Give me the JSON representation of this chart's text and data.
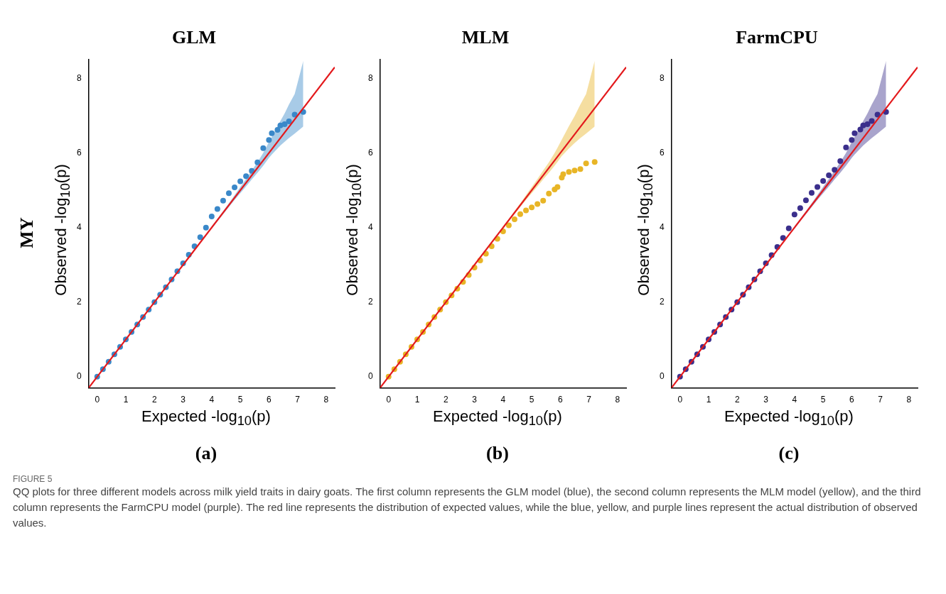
{
  "chart_data": [
    {
      "type": "scatter",
      "title": "GLM",
      "xlabel": "Expected -log$_{10}$(p)",
      "ylabel": "Observed -log$_{10}$(p)",
      "xlim": [
        -0.3,
        8.3
      ],
      "ylim": [
        -0.3,
        8.5
      ],
      "xticks": [
        0,
        1,
        2,
        3,
        4,
        5,
        6,
        7,
        8
      ],
      "yticks": [
        0,
        2,
        4,
        6,
        8
      ],
      "grid": false,
      "legend": false,
      "marker": "circle",
      "annotations": [
        "(a)",
        "MY",
        "FIGURE 5",
        "QQ plots for three different models across milk yield traits in dairy goats. The first column represents the GLM model (blue), the second column represents the MLM model (yellow), and the third column represents the FarmCPU model (purple). The red line represents the distribution of expected values, while the blue, yellow, and purple lines represent the actual distribution of observed values."
      ],
      "series": [
        {
          "color": "#3a88c9",
          "x": [
            0,
            0.2,
            0.4,
            0.6,
            0.8,
            1,
            1.2,
            1.4,
            1.6,
            1.8,
            2,
            2.2,
            2.4,
            2.6,
            2.8,
            3,
            3.2,
            3.4,
            3.6,
            3.8,
            4,
            4.2,
            4.4,
            4.6,
            4.8,
            5,
            5.2,
            5.4,
            5.6,
            5.8,
            6,
            6.1,
            6.3,
            6.4,
            6.55,
            6.7,
            6.9,
            7.2
          ],
          "values": [
            0,
            0.2,
            0.4,
            0.6,
            0.8,
            1,
            1.2,
            1.4,
            1.6,
            1.8,
            2,
            2.2,
            2.4,
            2.61,
            2.83,
            3.04,
            3.27,
            3.5,
            3.74,
            4,
            4.3,
            4.5,
            4.72,
            4.92,
            5.08,
            5.24,
            5.38,
            5.52,
            5.75,
            6.13,
            6.35,
            6.53,
            6.62,
            6.74,
            6.77,
            6.85,
            7.03,
            7.1
          ],
          "lower": [
            null,
            null,
            null,
            null,
            null,
            null,
            null,
            null,
            null,
            null,
            null,
            null,
            null,
            null,
            null,
            null,
            null,
            null,
            null,
            null,
            3.97,
            4.17,
            4.36,
            4.55,
            4.74,
            4.92,
            5.1,
            5.29,
            5.47,
            5.66,
            5.87,
            5.96,
            6.12,
            6.2,
            6.3,
            6.4,
            6.52,
            6.71
          ],
          "upper": [
            null,
            null,
            null,
            null,
            null,
            null,
            null,
            null,
            null,
            null,
            null,
            null,
            null,
            null,
            null,
            null,
            null,
            null,
            null,
            null,
            4.03,
            4.23,
            4.44,
            4.65,
            4.87,
            5.09,
            5.3,
            5.53,
            5.75,
            6.0,
            6.29,
            6.43,
            6.72,
            6.86,
            7.06,
            7.3,
            7.58,
            8.47
          ]
        },
        {
          "type": "line",
          "marker": "none",
          "color": "#e3191c",
          "x": [
            -0.3,
            8.3
          ],
          "values": [
            -0.3,
            8.3
          ]
        }
      ]
    },
    {
      "type": "scatter",
      "title": "MLM",
      "xlabel": "Expected -log$_{10}$(p)",
      "ylabel": "Observed -log$_{10}$(p)",
      "xlim": [
        -0.3,
        8.3
      ],
      "ylim": [
        -0.3,
        8.5
      ],
      "xticks": [
        0,
        1,
        2,
        3,
        4,
        5,
        6,
        7,
        8
      ],
      "yticks": [
        0,
        2,
        4,
        6,
        8
      ],
      "grid": false,
      "legend": false,
      "marker": "circle",
      "annotations": [
        "(b)"
      ],
      "series": [
        {
          "color": "#e8b526",
          "x": [
            0,
            0.2,
            0.4,
            0.6,
            0.8,
            1,
            1.2,
            1.4,
            1.6,
            1.8,
            2,
            2.2,
            2.4,
            2.6,
            2.8,
            3,
            3.2,
            3.4,
            3.6,
            3.8,
            4,
            4.2,
            4.4,
            4.6,
            4.8,
            5,
            5.2,
            5.4,
            5.6,
            5.8,
            5.9,
            6.05,
            6.1,
            6.3,
            6.5,
            6.7,
            6.9,
            7.2
          ],
          "values": [
            0,
            0.2,
            0.4,
            0.6,
            0.8,
            1,
            1.2,
            1.4,
            1.6,
            1.8,
            2,
            2.18,
            2.36,
            2.54,
            2.73,
            2.93,
            3.12,
            3.3,
            3.5,
            3.7,
            3.9,
            4.06,
            4.22,
            4.36,
            4.46,
            4.54,
            4.63,
            4.72,
            4.91,
            5.02,
            5.09,
            5.34,
            5.43,
            5.49,
            5.53,
            5.57,
            5.72,
            5.76
          ],
          "lower": [
            null,
            null,
            null,
            null,
            null,
            null,
            null,
            null,
            null,
            null,
            null,
            null,
            null,
            null,
            null,
            null,
            null,
            null,
            null,
            null,
            3.97,
            4.17,
            4.36,
            4.55,
            4.74,
            4.92,
            5.1,
            5.29,
            5.47,
            5.66,
            5.76,
            5.92,
            5.96,
            6.12,
            6.27,
            6.4,
            6.52,
            6.71
          ],
          "upper": [
            null,
            null,
            null,
            null,
            null,
            null,
            null,
            null,
            null,
            null,
            null,
            null,
            null,
            null,
            null,
            null,
            null,
            null,
            null,
            null,
            4.03,
            4.23,
            4.44,
            4.65,
            4.87,
            5.09,
            5.3,
            5.53,
            5.75,
            6.0,
            6.14,
            6.36,
            6.43,
            6.72,
            6.99,
            7.3,
            7.58,
            8.47
          ]
        },
        {
          "type": "line",
          "marker": "none",
          "color": "#e3191c",
          "x": [
            -0.3,
            8.3
          ],
          "values": [
            -0.3,
            8.3
          ]
        }
      ]
    },
    {
      "type": "scatter",
      "title": "FarmCPU",
      "xlabel": "Expected -log$_{10}$(p)",
      "ylabel": "Observed -log$_{10}$(p)",
      "xlim": [
        -0.3,
        8.3
      ],
      "ylim": [
        -0.3,
        8.5
      ],
      "xticks": [
        0,
        1,
        2,
        3,
        4,
        5,
        6,
        7,
        8
      ],
      "yticks": [
        0,
        2,
        4,
        6,
        8
      ],
      "grid": false,
      "legend": false,
      "marker": "circle",
      "annotations": [
        "(c)"
      ],
      "series": [
        {
          "color": "#3b2f8c",
          "x": [
            0,
            0.2,
            0.4,
            0.6,
            0.8,
            1,
            1.2,
            1.4,
            1.6,
            1.8,
            2,
            2.2,
            2.4,
            2.6,
            2.8,
            3,
            3.2,
            3.4,
            3.6,
            3.8,
            4,
            4.2,
            4.4,
            4.6,
            4.8,
            5,
            5.2,
            5.4,
            5.6,
            5.8,
            6,
            6.1,
            6.3,
            6.4,
            6.55,
            6.7,
            6.9,
            7.2
          ],
          "values": [
            0,
            0.2,
            0.4,
            0.6,
            0.8,
            1,
            1.2,
            1.4,
            1.6,
            1.8,
            2,
            2.2,
            2.4,
            2.61,
            2.83,
            3.04,
            3.26,
            3.48,
            3.72,
            3.98,
            4.35,
            4.52,
            4.73,
            4.93,
            5.09,
            5.25,
            5.4,
            5.55,
            5.78,
            6.15,
            6.35,
            6.53,
            6.63,
            6.74,
            6.77,
            6.86,
            7.03,
            7.1
          ],
          "lower": [
            null,
            null,
            null,
            null,
            null,
            null,
            null,
            null,
            null,
            null,
            null,
            null,
            null,
            null,
            null,
            null,
            null,
            null,
            null,
            null,
            3.97,
            4.17,
            4.36,
            4.55,
            4.74,
            4.92,
            5.1,
            5.29,
            5.47,
            5.66,
            5.87,
            5.96,
            6.12,
            6.2,
            6.3,
            6.4,
            6.52,
            6.71
          ],
          "upper": [
            null,
            null,
            null,
            null,
            null,
            null,
            null,
            null,
            null,
            null,
            null,
            null,
            null,
            null,
            null,
            null,
            null,
            null,
            null,
            null,
            4.03,
            4.23,
            4.44,
            4.65,
            4.87,
            5.09,
            5.3,
            5.53,
            5.75,
            6.0,
            6.29,
            6.43,
            6.72,
            6.86,
            7.06,
            7.3,
            7.58,
            8.47
          ]
        },
        {
          "type": "line",
          "marker": "none",
          "color": "#e3191c",
          "x": [
            -0.3,
            8.3
          ],
          "values": [
            -0.3,
            8.3
          ]
        }
      ]
    }
  ]
}
